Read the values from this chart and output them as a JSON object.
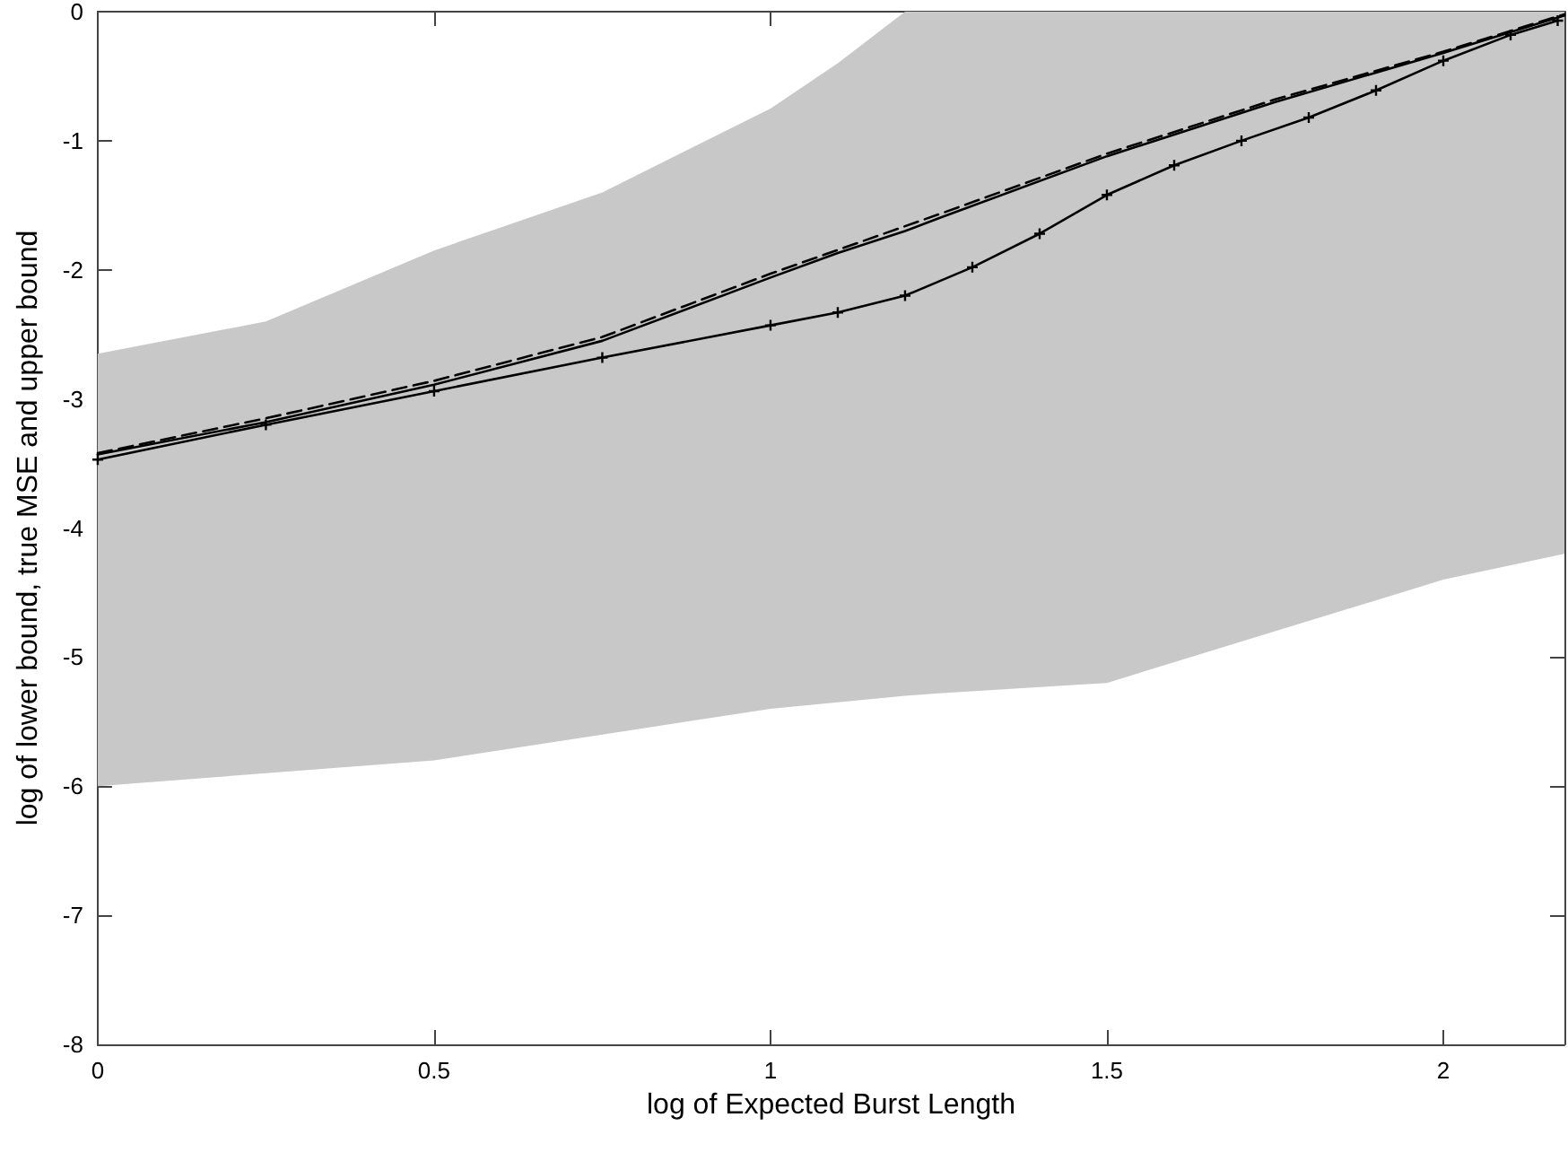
{
  "chart_data": {
    "type": "line",
    "xlabel": "log of Expected Burst Length",
    "ylabel": "log of lower bound, true MSE and upper bound",
    "xlim": [
      0,
      2.18
    ],
    "xticks": [
      0,
      0.5,
      1,
      1.5,
      2
    ],
    "ylim": [
      -8,
      0
    ],
    "yticks": [
      -8,
      -7,
      -6,
      -5,
      -4,
      -3,
      -2,
      -1,
      0
    ],
    "grid": false,
    "series": [
      {
        "color": "#000000",
        "line_style": "solid",
        "marker": "none",
        "x": [
          0,
          0.25,
          0.5,
          0.75,
          1.0,
          1.1,
          1.2,
          1.25,
          1.5,
          1.75,
          2.0,
          2.18
        ],
        "values": [
          -3.43,
          -3.18,
          -2.89,
          -2.55,
          -2.06,
          -1.87,
          -1.7,
          -1.6,
          -1.12,
          -0.7,
          -0.32,
          -0.03
        ],
        "lower": [
          -6,
          -5.9,
          -5.8,
          -5.6,
          -5.4,
          -5.35,
          -5.3,
          -5.28,
          -5.2,
          -4.8,
          -4.4,
          -4.2
        ],
        "upper": [
          -2.65,
          -2.4,
          -1.85,
          -1.4,
          -0.75,
          -0.4,
          0,
          0,
          0,
          0,
          0,
          0
        ]
      },
      {
        "color": "#000000",
        "line_style": "dashed",
        "marker": "none",
        "x": [
          0,
          0.25,
          0.5,
          0.75,
          1.0,
          1.25,
          1.5,
          1.75,
          2.0,
          2.18
        ],
        "values": [
          -3.42,
          -3.15,
          -2.86,
          -2.52,
          -2.03,
          -1.57,
          -1.1,
          -0.68,
          -0.31,
          -0.02
        ]
      },
      {
        "color": "#000000",
        "line_style": "solid",
        "marker": "cross",
        "x": [
          0,
          0.25,
          0.5,
          0.75,
          1.0,
          1.1,
          1.2,
          1.3,
          1.4,
          1.5,
          1.6,
          1.7,
          1.8,
          1.9,
          2.0,
          2.1,
          2.17
        ],
        "values": [
          -3.47,
          -3.2,
          -2.94,
          -2.68,
          -2.43,
          -2.33,
          -2.2,
          -1.98,
          -1.72,
          -1.42,
          -1.19,
          -1.0,
          -0.82,
          -0.61,
          -0.38,
          -0.18,
          -0.07
        ]
      }
    ]
  }
}
